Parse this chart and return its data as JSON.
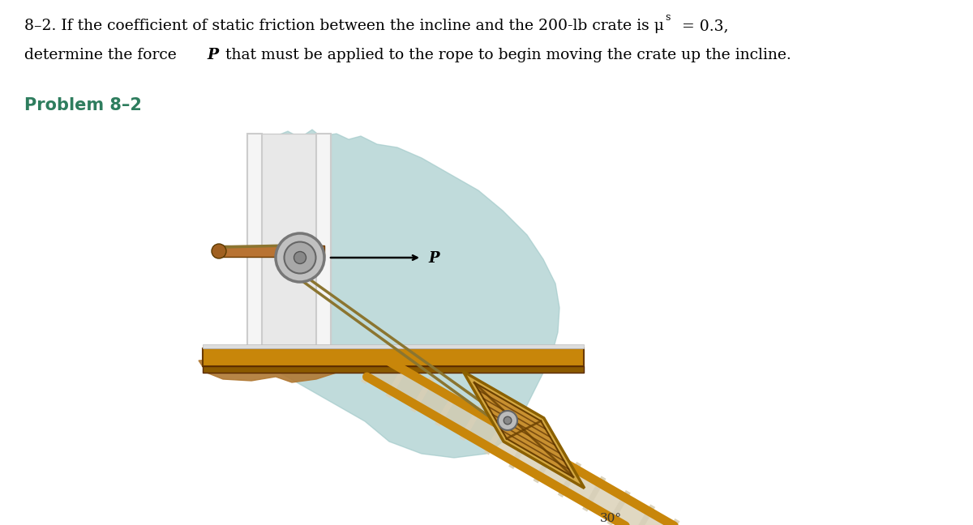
{
  "bg_color": "#ffffff",
  "text_color": "#000000",
  "problem_color": "#2e7d5e",
  "problem_label": "Problem 8–2",
  "angle_label": "30°",
  "P_label": "P",
  "teal_color": "#9fc8c8",
  "wall_post_color": "#f0f0f0",
  "wall_frame_color": "#e8e8e8",
  "rod_color": "#b87333",
  "floor_color": "#c8860a",
  "floor_dark": "#8B5A00",
  "floor_mud_color": "#a0600a",
  "rail_color": "#c8860a",
  "step_fill": "#d4cbb0",
  "step_line": "#aaa090",
  "crate_outer": "#d4a843",
  "crate_dark": "#8B6914",
  "crate_wood": "#c8860a",
  "rope_color": "#8B7530",
  "pulley_outer": "#b0b0b0",
  "pulley_inner": "#888888",
  "pulley_center": "#555555"
}
